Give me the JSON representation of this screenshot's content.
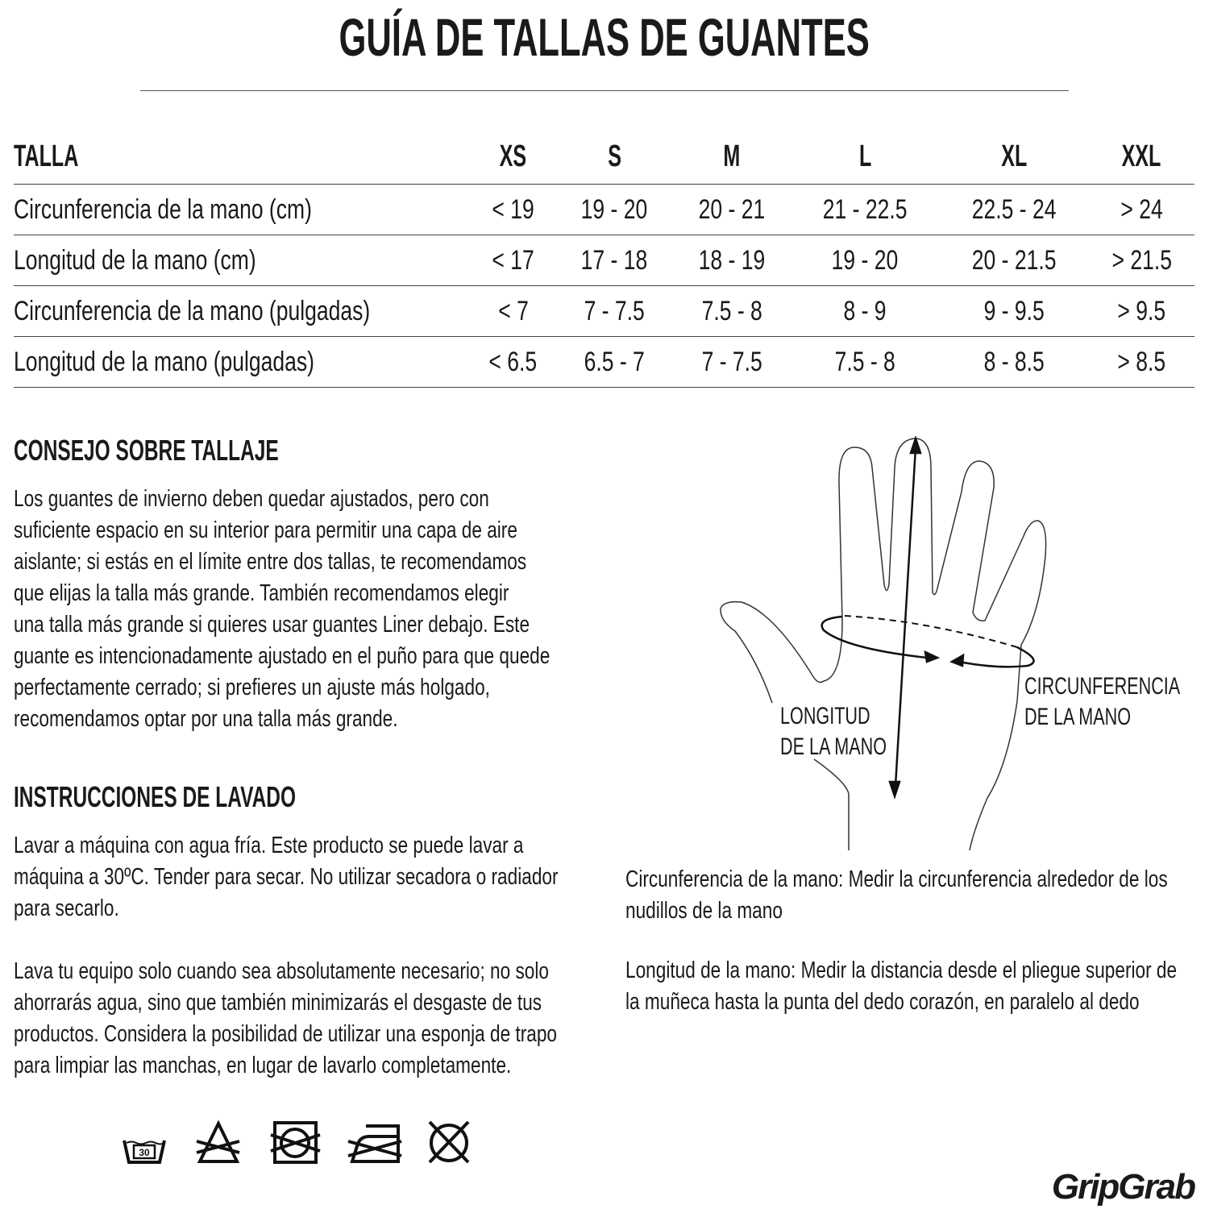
{
  "title": "GUÍA DE TALLAS DE GUANTES",
  "size_table": {
    "header": [
      "TALLA",
      "XS",
      "S",
      "M",
      "L",
      "XL",
      "XXL"
    ],
    "rows": [
      {
        "label": "Circunferencia de la mano (cm)",
        "values": [
          "< 19",
          "19 - 20",
          "20 - 21",
          "21 - 22.5",
          "22.5 - 24",
          "> 24"
        ]
      },
      {
        "label": "Longitud de la mano (cm)",
        "values": [
          "< 17",
          "17 - 18",
          "18 - 19",
          "19 - 20",
          "20 - 21.5",
          "> 21.5"
        ]
      },
      {
        "label": "Circunferencia de la mano (pulgadas)",
        "values": [
          "< 7",
          "7 - 7.5",
          "7.5 - 8",
          "8 - 9",
          "9 - 9.5",
          "> 9.5"
        ]
      },
      {
        "label": "Longitud de la mano (pulgadas)",
        "values": [
          "< 6.5",
          "6.5 - 7",
          "7 - 7.5",
          "7.5 - 8",
          "8 - 8.5",
          "> 8.5"
        ]
      }
    ]
  },
  "sizing_advice": {
    "heading": "CONSEJO SOBRE TALLAJE",
    "lines": [
      "Los guantes de invierno deben quedar ajustados, pero con",
      "suficiente espacio en su interior para permitir una capa de aire",
      "aislante; si estás en el límite entre dos tallas, te recomendamos",
      "que elijas la talla más grande.  También recomendamos elegir",
      "una talla más grande si quieres usar guantes Liner debajo. Este",
      "guante es intencionadamente ajustado en el puño para que quede",
      "perfectamente cerrado; si prefieres un ajuste más holgado,",
      "recomendamos optar por una talla más grande."
    ]
  },
  "washing": {
    "heading": "INSTRUCCIONES DE LAVADO",
    "para1": [
      "Lavar a máquina con agua fría. Este producto se puede lavar a",
      "máquina a 30ºC. Tender para secar. No utilizar secadora o radiador",
      "para secarlo."
    ],
    "para2": [
      "Lava tu equipo solo cuando sea absolutamente necesario; no solo",
      "ahorrarás agua, sino que también minimizarás el desgaste de tus",
      "productos. Considera la posibilidad de utilizar una esponja de trapo",
      "para limpiar las manchas, en lugar de lavarlo completamente."
    ],
    "icons": [
      "wash-30-icon",
      "no-bleach-icon",
      "no-tumble-dry-icon",
      "no-iron-icon",
      "no-dry-clean-icon"
    ],
    "wash_temp": "30"
  },
  "hand_diagram": {
    "length_label": [
      "LONGITUD",
      "DE LA MANO"
    ],
    "circumference_label": [
      "CIRCUNFERENCIA",
      "DE LA MANO"
    ]
  },
  "measure_notes": {
    "circumference": [
      "Circunferencia de la mano: Medir la circunferencia alrededor de los",
      "nudillos de la mano"
    ],
    "length": [
      "Longitud de la mano: Medir la distancia desde el pliegue superior de",
      "la muñeca hasta la punta del dedo corazón, en paralelo al dedo"
    ]
  },
  "brand": "GripGrab"
}
